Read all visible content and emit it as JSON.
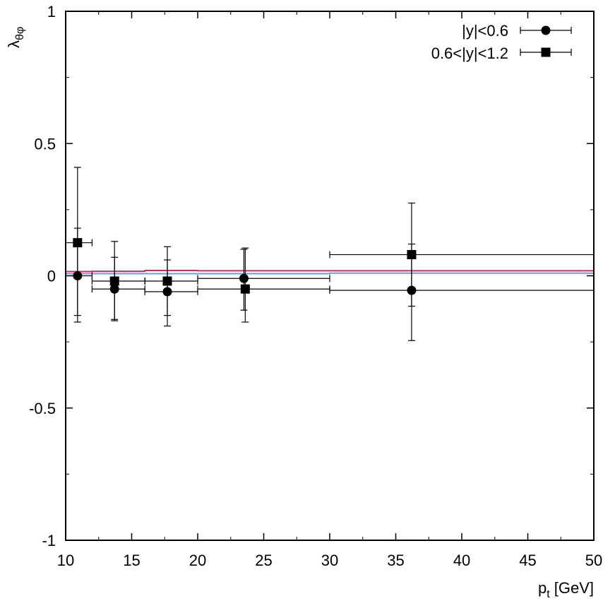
{
  "chart_data": {
    "type": "scatter",
    "title": "",
    "xlabel": "p",
    "xlabel_sub": "t",
    "xlabel_unit": " [GeV]",
    "ylabel": "λ",
    "ylabel_sub": "θφ",
    "xlim": [
      10,
      50
    ],
    "ylim": [
      -1,
      1
    ],
    "xticks": [
      10,
      15,
      20,
      25,
      30,
      35,
      40,
      45,
      50
    ],
    "xtick_labels": [
      "10",
      "15",
      "20",
      "25",
      "30",
      "35",
      "40",
      "45",
      "50"
    ],
    "yticks": [
      -1,
      -0.5,
      0,
      0.5,
      1
    ],
    "ytick_labels": [
      "-1",
      "-0.5",
      "0",
      "0.5",
      "1"
    ],
    "legend_position": "top-right",
    "series": [
      {
        "name": "|y|<0.6",
        "marker": "circle",
        "color": "#000000",
        "points": [
          {
            "x": 10.9,
            "y": 0.0,
            "xlo": 10,
            "xhi": 12,
            "ylo": -0.15,
            "yhi": 0.18
          },
          {
            "x": 13.7,
            "y": -0.05,
            "xlo": 12,
            "xhi": 16,
            "ylo": -0.17,
            "yhi": 0.07
          },
          {
            "x": 17.7,
            "y": -0.06,
            "xlo": 16,
            "xhi": 20,
            "ylo": -0.19,
            "yhi": 0.06
          },
          {
            "x": 23.5,
            "y": -0.01,
            "xlo": 20,
            "xhi": 30,
            "ylo": -0.13,
            "yhi": 0.1
          },
          {
            "x": 36.2,
            "y": -0.055,
            "xlo": 30,
            "xhi": 50,
            "ylo": -0.245,
            "yhi": 0.12
          }
        ]
      },
      {
        "name": "0.6<|y|<1.2",
        "marker": "square",
        "color": "#000000",
        "points": [
          {
            "x": 10.9,
            "y": 0.125,
            "xlo": 10,
            "xhi": 12,
            "ylo": -0.175,
            "yhi": 0.41
          },
          {
            "x": 13.7,
            "y": -0.02,
            "xlo": 12,
            "xhi": 16,
            "ylo": -0.165,
            "yhi": 0.13
          },
          {
            "x": 17.7,
            "y": -0.02,
            "xlo": 16,
            "xhi": 20,
            "ylo": -0.15,
            "yhi": 0.11
          },
          {
            "x": 23.6,
            "y": -0.05,
            "xlo": 20,
            "xhi": 30,
            "ylo": -0.175,
            "yhi": 0.105
          },
          {
            "x": 36.2,
            "y": 0.08,
            "xlo": 30,
            "xhi": 50,
            "ylo": -0.115,
            "yhi": 0.275
          }
        ]
      }
    ],
    "model_curves": [
      {
        "name": "model-red",
        "color": "#e0245e",
        "steps": [
          [
            10,
            12,
            0.016
          ],
          [
            12,
            16,
            0.017
          ],
          [
            16,
            20,
            0.02
          ],
          [
            20,
            30,
            0.019
          ],
          [
            30,
            50,
            0.019
          ]
        ]
      },
      {
        "name": "model-blue",
        "color": "#6a9fd4",
        "steps": [
          [
            10,
            12,
            0.008
          ],
          [
            12,
            16,
            0.008
          ],
          [
            16,
            20,
            0.008
          ],
          [
            20,
            30,
            0.008
          ],
          [
            30,
            50,
            0.01
          ]
        ]
      }
    ]
  }
}
